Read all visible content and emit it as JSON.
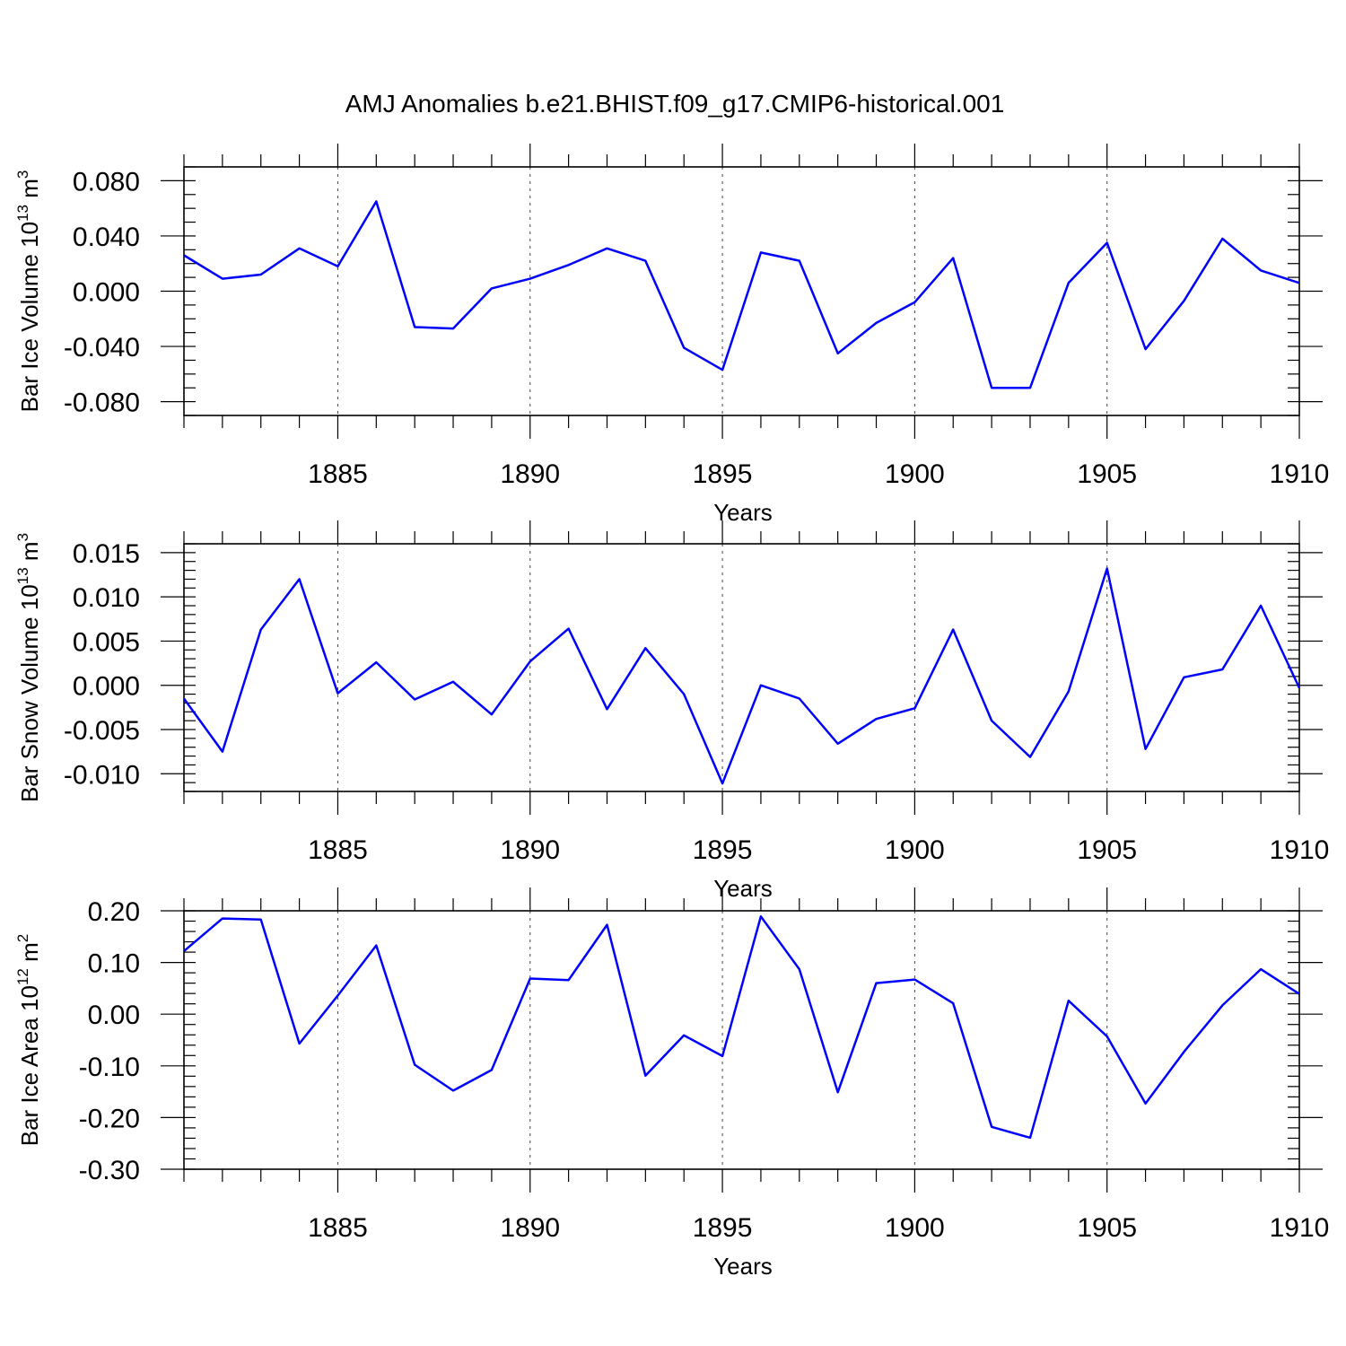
{
  "title": "AMJ Anomalies b.e21.BHIST.f09_g17.CMIP6-historical.001",
  "colors": {
    "line": "#0000ff",
    "axis": "#000000",
    "grid": "#444444"
  },
  "chart_data": [
    {
      "type": "line",
      "ylabel": "Bar Ice Volume 10",
      "ylabel_exponent": "13",
      "ylabel_unit": " m",
      "ylabel_unit_exponent": "3",
      "xlabel": "Years",
      "xlim": [
        1881,
        1910
      ],
      "ylim": [
        -0.09,
        0.09
      ],
      "y_major_ticks": [
        -0.08,
        -0.04,
        0.0,
        0.04,
        0.08
      ],
      "y_tick_labels": [
        "-0.080",
        "-0.040",
        "0.000",
        "0.040",
        "0.080"
      ],
      "y_minor_step": 0.01,
      "x_major_ticks": [
        1885,
        1890,
        1895,
        1900,
        1905,
        1910
      ],
      "x_tick_labels": [
        "1885",
        "1890",
        "1895",
        "1900",
        "1905",
        "1910"
      ],
      "grid_x": true,
      "series": [
        {
          "name": "Bar Ice Volume",
          "x": [
            1881,
            1882,
            1883,
            1884,
            1885,
            1886,
            1887,
            1888,
            1889,
            1890,
            1891,
            1892,
            1893,
            1894,
            1895,
            1896,
            1897,
            1898,
            1899,
            1900,
            1901,
            1902,
            1903,
            1904,
            1905,
            1906,
            1907,
            1908,
            1909,
            1910
          ],
          "values": [
            0.026,
            0.009,
            0.012,
            0.031,
            0.018,
            0.065,
            -0.026,
            -0.027,
            0.002,
            0.009,
            0.019,
            0.031,
            0.022,
            -0.041,
            -0.057,
            0.028,
            0.022,
            -0.045,
            -0.023,
            -0.008,
            0.024,
            -0.07,
            -0.07,
            0.006,
            0.035,
            -0.042,
            -0.007,
            0.038,
            0.015,
            0.006
          ]
        }
      ]
    },
    {
      "type": "line",
      "ylabel": "Bar Snow Volume 10",
      "ylabel_exponent": "13",
      "ylabel_unit": " m",
      "ylabel_unit_exponent": "3",
      "xlabel": "Years",
      "xlim": [
        1881,
        1910
      ],
      "ylim": [
        -0.012,
        0.016
      ],
      "y_major_ticks": [
        -0.01,
        -0.005,
        0.0,
        0.005,
        0.01,
        0.015
      ],
      "y_tick_labels": [
        "-0.010",
        "-0.005",
        "0.000",
        "0.005",
        "0.010",
        "0.015"
      ],
      "y_minor_step": 0.001,
      "x_major_ticks": [
        1885,
        1890,
        1895,
        1900,
        1905,
        1910
      ],
      "x_tick_labels": [
        "1885",
        "1890",
        "1895",
        "1900",
        "1905",
        "1910"
      ],
      "grid_x": true,
      "series": [
        {
          "name": "Bar Snow Volume",
          "x": [
            1881,
            1882,
            1883,
            1884,
            1885,
            1886,
            1887,
            1888,
            1889,
            1890,
            1891,
            1892,
            1893,
            1894,
            1895,
            1896,
            1897,
            1898,
            1899,
            1900,
            1901,
            1902,
            1903,
            1904,
            1905,
            1906,
            1907,
            1908,
            1909,
            1910
          ],
          "values": [
            -0.0015,
            -0.0075,
            0.0063,
            0.012,
            -0.0009,
            0.0026,
            -0.0016,
            0.0004,
            -0.0033,
            0.0027,
            0.0064,
            -0.0027,
            0.0042,
            -0.001,
            -0.0111,
            0.0,
            -0.0015,
            -0.0066,
            -0.0038,
            -0.0026,
            0.0063,
            -0.004,
            -0.0081,
            -0.0007,
            0.0132,
            -0.0072,
            0.0009,
            0.0018,
            0.009,
            -0.0003
          ]
        }
      ]
    },
    {
      "type": "line",
      "ylabel": "Bar Ice Area 10",
      "ylabel_exponent": "12",
      "ylabel_unit": " m",
      "ylabel_unit_exponent": "2",
      "xlabel": "Years",
      "xlim": [
        1881,
        1910
      ],
      "ylim": [
        -0.3,
        0.2
      ],
      "y_major_ticks": [
        -0.3,
        -0.2,
        -0.1,
        0.0,
        0.1,
        0.2
      ],
      "y_tick_labels": [
        "-0.30",
        "-0.20",
        "-0.10",
        "0.00",
        "0.10",
        "0.20"
      ],
      "y_minor_step": 0.02,
      "x_major_ticks": [
        1885,
        1890,
        1895,
        1900,
        1905,
        1910
      ],
      "x_tick_labels": [
        "1885",
        "1890",
        "1895",
        "1900",
        "1905",
        "1910"
      ],
      "grid_x": true,
      "series": [
        {
          "name": "Bar Ice Area",
          "x": [
            1881,
            1882,
            1883,
            1884,
            1885,
            1886,
            1887,
            1888,
            1889,
            1890,
            1891,
            1892,
            1893,
            1894,
            1895,
            1896,
            1897,
            1898,
            1899,
            1900,
            1901,
            1902,
            1903,
            1904,
            1905,
            1906,
            1907,
            1908,
            1909,
            1910
          ],
          "values": [
            0.122,
            0.185,
            0.183,
            -0.057,
            0.036,
            0.133,
            -0.098,
            -0.148,
            -0.108,
            0.069,
            0.066,
            0.173,
            -0.119,
            -0.041,
            -0.081,
            0.189,
            0.087,
            -0.151,
            0.06,
            0.067,
            0.021,
            -0.218,
            -0.239,
            0.026,
            -0.043,
            -0.173,
            -0.073,
            0.017,
            0.087,
            0.039
          ]
        }
      ]
    }
  ]
}
